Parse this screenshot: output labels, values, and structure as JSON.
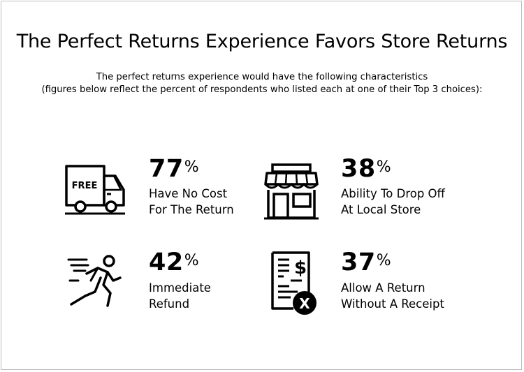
{
  "title": "The Perfect Returns Experience Favors Store Returns",
  "subtitle_line1": "The perfect returns experience would have the following characteristics",
  "subtitle_line2": "(figures below reflect the percent of respondents who listed each at one of their Top 3 choices):",
  "stats": [
    {
      "value": "77",
      "unit": "%",
      "line1": "Have No Cost",
      "line2": "For The Return",
      "icon": "free-delivery-truck-icon",
      "icon_text": "FREE"
    },
    {
      "value": "38",
      "unit": "%",
      "line1": "Ability To Drop Off",
      "line2": "At Local Store",
      "icon": "storefront-icon"
    },
    {
      "value": "42",
      "unit": "%",
      "line1": "Immediate",
      "line2": "Refund",
      "icon": "running-person-icon"
    },
    {
      "value": "37",
      "unit": "%",
      "line1": "Allow A Return",
      "line2": "Without A Receipt",
      "icon": "receipt-no-icon",
      "icon_text": "X"
    }
  ]
}
